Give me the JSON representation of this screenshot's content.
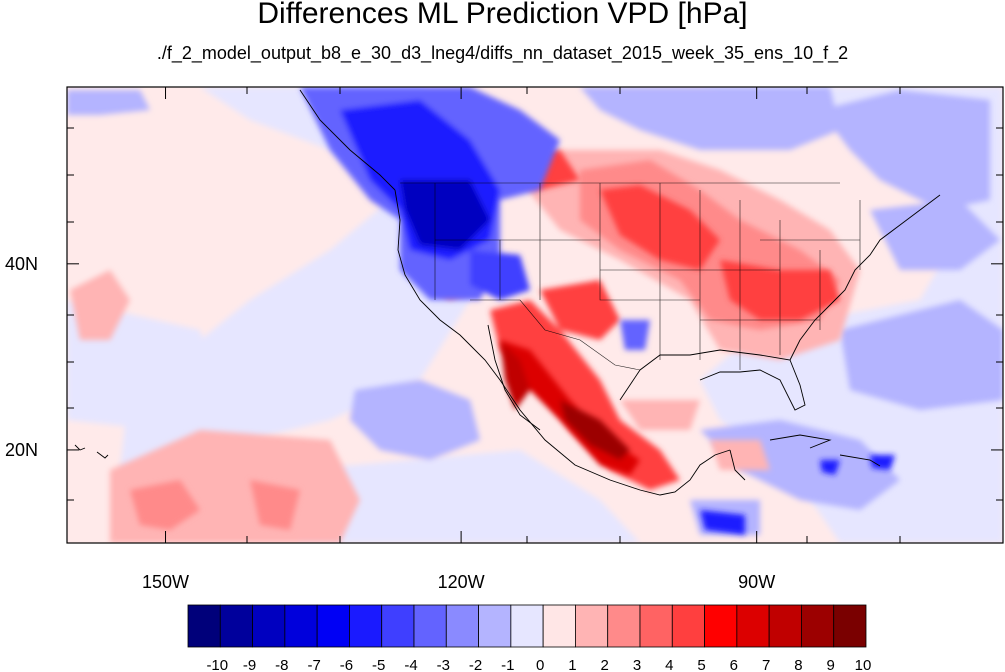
{
  "title": "Differences ML Prediction VPD [hPa]",
  "subtitle": "./f_2_model_output_b8_e_30_d3_lneg4/diffs_nn_dataset_2015_week_35_ens_10_f_2",
  "map": {
    "lon_range": [
      -160,
      -65
    ],
    "lat_range": [
      10,
      59
    ],
    "x_ticks": [
      {
        "lon": -150,
        "label": "150W"
      },
      {
        "lon": -120,
        "label": "120W"
      },
      {
        "lon": -90,
        "label": "90W"
      }
    ],
    "y_ticks": [
      {
        "lat": 40,
        "label": "40N"
      },
      {
        "lat": 20,
        "label": "20N"
      }
    ]
  },
  "colorbar": {
    "labels": [
      "-10",
      "-9",
      "-8",
      "-7",
      "-6",
      "-5",
      "-4",
      "-3",
      "-2",
      "-1",
      "0",
      "1",
      "2",
      "3",
      "4",
      "5",
      "6",
      "7",
      "8",
      "9",
      "10"
    ],
    "colors": [
      "#00007a",
      "#00009c",
      "#0000c0",
      "#0000dc",
      "#0000f5",
      "#1a1aff",
      "#3f3fff",
      "#6363ff",
      "#8a8aff",
      "#b4b4ff",
      "#e6e6ff",
      "#ffe6e6",
      "#ffb4b4",
      "#ff8a8a",
      "#ff6363",
      "#ff3f3f",
      "#ff0000",
      "#dc0000",
      "#c00000",
      "#9c0000",
      "#7a0000"
    ]
  }
}
